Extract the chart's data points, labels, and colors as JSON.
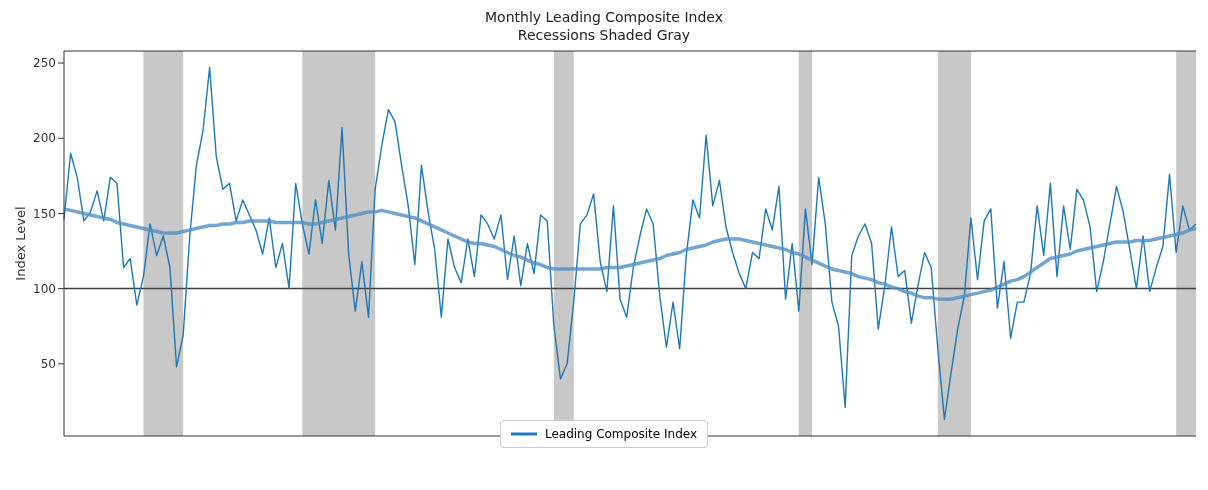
{
  "chart_data": {
    "type": "line",
    "title": "Monthly Leading Composite Index",
    "subtitle": "Recessions Shaded Gray",
    "ylabel": "Index Level",
    "categories": [
      null,
      null,
      null,
      null,
      null,
      null,
      null,
      null,
      null,
      null,
      null,
      null,
      null,
      null,
      null,
      null,
      null,
      null,
      null,
      null,
      null,
      null,
      null,
      null,
      null,
      null,
      null,
      null,
      null,
      null,
      null,
      null,
      null,
      null,
      null,
      null,
      null,
      null,
      null,
      null,
      null,
      null,
      null,
      null,
      null,
      null,
      null,
      null,
      null,
      null,
      null,
      null,
      null,
      null,
      null,
      null,
      null,
      null,
      null,
      null,
      null,
      null,
      null,
      null,
      null,
      null,
      null,
      null,
      null,
      null,
      null,
      null,
      null,
      null,
      null,
      null,
      null,
      null,
      null,
      null,
      null,
      null,
      null,
      null,
      null,
      null,
      null,
      null,
      null,
      null,
      null,
      null,
      null,
      null,
      null,
      null,
      null,
      null,
      null,
      null,
      null,
      null,
      null,
      null,
      null,
      null,
      null,
      null,
      null,
      null,
      null,
      null,
      null,
      null,
      null,
      null,
      null,
      null,
      null,
      null,
      null,
      null,
      null,
      null,
      null,
      null,
      null,
      null,
      null,
      null,
      null,
      null,
      null,
      null,
      null,
      null,
      null,
      null,
      null,
      null,
      null,
      null,
      null,
      null,
      null,
      null,
      null,
      null,
      null,
      null,
      null,
      null,
      null,
      null,
      null,
      null,
      null,
      null,
      null,
      null,
      null,
      null,
      null,
      null,
      null,
      null,
      null,
      null,
      null,
      null,
      null,
      null
    ],
    "ylim": [
      2,
      258
    ],
    "yticks": [
      50,
      100,
      150,
      200,
      250
    ],
    "grid": false,
    "legend": "bottom",
    "line_style": "solid",
    "marker": "none",
    "ref_lines": [
      {
        "axis": "y",
        "value": 100,
        "color": "#404040"
      }
    ],
    "series": [
      {
        "name": "Leading Composite Index",
        "color": "#1f77b4",
        "values": [
          146,
          190,
          174,
          145,
          151,
          165,
          145,
          174,
          170,
          114,
          120,
          89,
          108,
          143,
          122,
          135,
          114,
          48,
          69,
          135,
          182,
          205,
          247,
          188,
          166,
          170,
          145,
          159,
          149,
          139,
          123,
          147,
          114,
          130,
          100,
          170,
          143,
          123,
          159,
          130,
          172,
          139,
          207,
          123,
          85,
          118,
          81,
          166,
          195,
          219,
          211,
          182,
          155,
          116,
          182,
          151,
          126,
          81,
          133,
          114,
          104,
          133,
          108,
          149,
          143,
          133,
          149,
          106,
          135,
          102,
          130,
          110,
          149,
          145,
          75,
          40,
          50,
          91,
          143,
          149,
          163,
          118,
          98,
          155,
          93,
          81,
          114,
          135,
          153,
          143,
          95,
          61,
          91,
          60,
          122,
          159,
          147,
          202,
          155,
          172,
          141,
          124,
          110,
          100,
          124,
          120,
          153,
          139,
          168,
          93,
          130,
          85,
          153,
          116,
          174,
          143,
          91,
          75,
          21,
          122,
          135,
          143,
          130,
          73,
          102,
          141,
          108,
          112,
          77,
          102,
          124,
          114,
          60,
          13,
          44,
          73,
          95,
          147,
          106,
          145,
          153,
          87,
          118,
          67,
          91,
          91,
          110,
          155,
          122,
          170,
          108,
          155,
          126,
          166,
          159,
          141,
          98,
          118,
          143,
          168,
          151,
          126,
          100,
          135,
          98,
          114,
          128,
          176,
          124,
          155,
          139,
          143
        ]
      },
      {
        "color": "#4f8fc4",
        "values": [
          153,
          152,
          151,
          150,
          149,
          148,
          147,
          146,
          144,
          143,
          142,
          141,
          140,
          139,
          138,
          137,
          137,
          137,
          138,
          139,
          140,
          141,
          142,
          142,
          143,
          143,
          144,
          144,
          145,
          145,
          145,
          145,
          144,
          144,
          144,
          144,
          144,
          143,
          143,
          144,
          145,
          146,
          147,
          148,
          149,
          150,
          151,
          151,
          152,
          151,
          150,
          149,
          148,
          147,
          145,
          143,
          141,
          139,
          137,
          135,
          133,
          131,
          130,
          130,
          129,
          128,
          126,
          124,
          122,
          121,
          119,
          117,
          116,
          114,
          113,
          113,
          113,
          113,
          113,
          113,
          113,
          113,
          114,
          114,
          114,
          115,
          116,
          117,
          118,
          119,
          120,
          122,
          123,
          124,
          126,
          127,
          128,
          129,
          131,
          132,
          133,
          133,
          133,
          132,
          131,
          130,
          129,
          128,
          127,
          126,
          124,
          123,
          121,
          119,
          117,
          115,
          113,
          112,
          111,
          110,
          108,
          107,
          106,
          104,
          103,
          101,
          100,
          98,
          97,
          95,
          94,
          94,
          93,
          93,
          93,
          94,
          95,
          96,
          97,
          98,
          99,
          101,
          103,
          105,
          106,
          108,
          111,
          114,
          117,
          120,
          121,
          122,
          123,
          125,
          126,
          127,
          128,
          129,
          130,
          131,
          131,
          131,
          132,
          132,
          132,
          133,
          134,
          135,
          136,
          137,
          139,
          140
        ]
      }
    ]
  }
}
